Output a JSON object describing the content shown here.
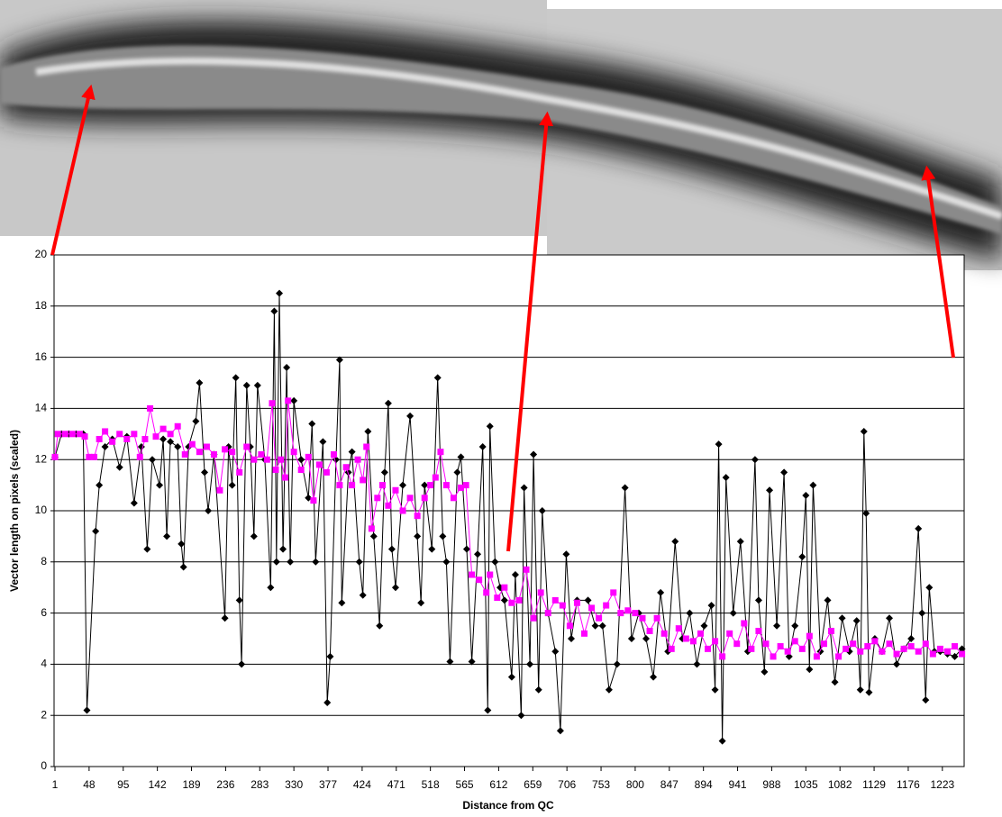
{
  "chart_data": {
    "type": "line",
    "xlabel": "Distance from QC",
    "ylabel": "Vector length on pixels (scaled)",
    "xlim": [
      1,
      1253
    ],
    "xticks": [
      1,
      48,
      95,
      142,
      189,
      236,
      283,
      330,
      377,
      424,
      471,
      518,
      565,
      612,
      659,
      706,
      753,
      800,
      847,
      894,
      941,
      988,
      1035,
      1082,
      1129,
      1176,
      1223
    ],
    "ylim": [
      0,
      20
    ],
    "yticks": [
      0,
      2,
      4,
      6,
      8,
      10,
      12,
      14,
      16,
      18,
      20
    ],
    "grid": true,
    "series": [
      {
        "color": "#000000",
        "marker": "diamond",
        "x": [
          1,
          10,
          20,
          30,
          40,
          45,
          57,
          62,
          70,
          80,
          90,
          100,
          110,
          120,
          128,
          135,
          145,
          150,
          155,
          160,
          170,
          175,
          178,
          185,
          195,
          200,
          207,
          212,
          220,
          235,
          240,
          245,
          250,
          255,
          258,
          265,
          270,
          275,
          280,
          290,
          298,
          303,
          306,
          310,
          315,
          320,
          325,
          330,
          340,
          350,
          355,
          360,
          370,
          376,
          380,
          388,
          393,
          396,
          405,
          410,
          420,
          425,
          432,
          440,
          448,
          455,
          460,
          465,
          470,
          480,
          490,
          500,
          505,
          510,
          520,
          528,
          535,
          540,
          545,
          555,
          560,
          568,
          575,
          583,
          590,
          597,
          600,
          607,
          614,
          620,
          630,
          635,
          643,
          647,
          655,
          660,
          667,
          672,
          680,
          690,
          697,
          705,
          712,
          720,
          735,
          745,
          755,
          764,
          775,
          786,
          795,
          805,
          815,
          825,
          835,
          845,
          855,
          865,
          875,
          885,
          895,
          905,
          910,
          915,
          920,
          925,
          935,
          945,
          955,
          965,
          970,
          978,
          985,
          995,
          1005,
          1012,
          1020,
          1030,
          1035,
          1040,
          1045,
          1055,
          1065,
          1075,
          1085,
          1095,
          1105,
          1110,
          1115,
          1118,
          1122,
          1130,
          1140,
          1150,
          1160,
          1170,
          1180,
          1190,
          1195,
          1200,
          1205,
          1212,
          1220,
          1230,
          1240,
          1250
        ],
        "values": [
          12.1,
          13,
          13,
          13,
          13,
          2.2,
          9.2,
          11,
          12.5,
          12.8,
          11.7,
          12.9,
          10.3,
          12.5,
          8.5,
          12,
          11,
          12.8,
          9,
          12.7,
          12.5,
          8.7,
          7.8,
          12.5,
          13.5,
          15,
          11.5,
          10,
          12.2,
          5.8,
          12.5,
          11,
          15.2,
          6.5,
          4,
          14.9,
          12.5,
          9,
          14.9,
          12,
          7,
          17.8,
          8,
          18.5,
          8.5,
          15.6,
          8,
          14.3,
          12,
          10.5,
          13.4,
          8,
          12.7,
          2.5,
          4.3,
          12,
          15.9,
          6.4,
          11.5,
          12.3,
          8,
          6.7,
          13.1,
          9,
          5.5,
          11.5,
          14.2,
          8.5,
          7,
          11,
          13.7,
          9,
          6.4,
          11,
          8.5,
          15.2,
          9,
          8,
          4.1,
          11.5,
          12.1,
          8.5,
          4.1,
          8.3,
          12.5,
          2.2,
          13.3,
          8,
          7,
          6.5,
          3.5,
          7.5,
          2,
          10.9,
          4,
          12.2,
          3,
          10,
          6,
          4.5,
          1.4,
          8.3,
          5,
          6.5,
          6.5,
          5.5,
          5.5,
          3,
          4,
          10.9,
          5,
          6,
          5,
          3.5,
          6.8,
          4.5,
          8.8,
          5,
          6,
          4,
          5.5,
          6.3,
          3,
          12.6,
          1,
          11.3,
          6,
          8.8,
          4.5,
          12,
          6.5,
          3.7,
          10.8,
          5.5,
          11.5,
          4.3,
          5.5,
          8.2,
          10.6,
          3.8,
          11,
          4.5,
          6.5,
          3.3,
          5.8,
          4.5,
          5.7,
          3,
          13.1,
          9.9,
          2.9,
          5,
          4.5,
          5.8,
          4,
          4.6,
          5,
          9.3,
          6,
          2.6,
          7,
          4.5,
          4.5,
          4.4,
          4.3,
          4.6
        ]
      },
      {
        "color": "#ff00ff",
        "marker": "square",
        "x": [
          1,
          5,
          15,
          25,
          35,
          42,
          48,
          55,
          62,
          70,
          80,
          90,
          100,
          110,
          118,
          125,
          132,
          140,
          150,
          160,
          170,
          180,
          190,
          200,
          210,
          220,
          228,
          235,
          245,
          255,
          265,
          275,
          285,
          293,
          300,
          305,
          312,
          318,
          322,
          330,
          340,
          350,
          357,
          365,
          375,
          385,
          393,
          402,
          410,
          418,
          425,
          430,
          437,
          445,
          452,
          460,
          470,
          480,
          490,
          500,
          510,
          518,
          525,
          532,
          540,
          550,
          560,
          567,
          575,
          585,
          595,
          600,
          610,
          620,
          630,
          640,
          650,
          660,
          670,
          680,
          690,
          700,
          710,
          720,
          730,
          740,
          750,
          760,
          770,
          780,
          790,
          800,
          810,
          820,
          830,
          840,
          850,
          860,
          870,
          880,
          890,
          900,
          910,
          920,
          930,
          940,
          950,
          960,
          970,
          980,
          990,
          1000,
          1010,
          1020,
          1030,
          1040,
          1050,
          1060,
          1070,
          1080,
          1090,
          1100,
          1110,
          1120,
          1130,
          1140,
          1150,
          1160,
          1170,
          1180,
          1190,
          1200,
          1210,
          1220,
          1230,
          1240,
          1250
        ],
        "values": [
          12.1,
          13,
          13,
          13,
          13,
          12.9,
          12.1,
          12.1,
          12.8,
          13.1,
          12.7,
          13,
          12.8,
          13,
          12.1,
          12.8,
          14,
          12.9,
          13.2,
          13,
          13.3,
          12.2,
          12.6,
          12.3,
          12.5,
          12.2,
          10.8,
          12.4,
          12.3,
          11.5,
          12.5,
          12,
          12.2,
          12,
          14.2,
          11.6,
          12,
          11.3,
          14.3,
          12.3,
          11.6,
          12.1,
          10.4,
          11.8,
          11.5,
          12.2,
          11,
          11.7,
          11,
          12,
          11.2,
          12.5,
          9.3,
          10.5,
          11,
          10.2,
          10.8,
          10,
          10.5,
          9.8,
          10.5,
          11,
          11.3,
          12.3,
          11,
          10.5,
          10.9,
          11,
          7.5,
          7.3,
          6.8,
          7.5,
          6.6,
          7,
          6.4,
          6.5,
          7.7,
          5.8,
          6.8,
          6,
          6.5,
          6.3,
          5.5,
          6.4,
          5.2,
          6.2,
          5.8,
          6.3,
          6.8,
          6,
          6.1,
          6,
          5.8,
          5.3,
          5.8,
          5.2,
          4.6,
          5.4,
          5,
          4.9,
          5.2,
          4.6,
          4.9,
          4.3,
          5.2,
          4.8,
          5.6,
          4.6,
          5.3,
          4.8,
          4.3,
          4.7,
          4.5,
          4.9,
          4.6,
          5.1,
          4.3,
          4.8,
          5.3,
          4.3,
          4.6,
          4.8,
          4.5,
          4.7,
          4.9,
          4.5,
          4.8,
          4.4,
          4.6,
          4.7,
          4.5,
          4.8,
          4.4,
          4.6,
          4.5,
          4.7,
          4.4
        ]
      }
    ]
  }
}
